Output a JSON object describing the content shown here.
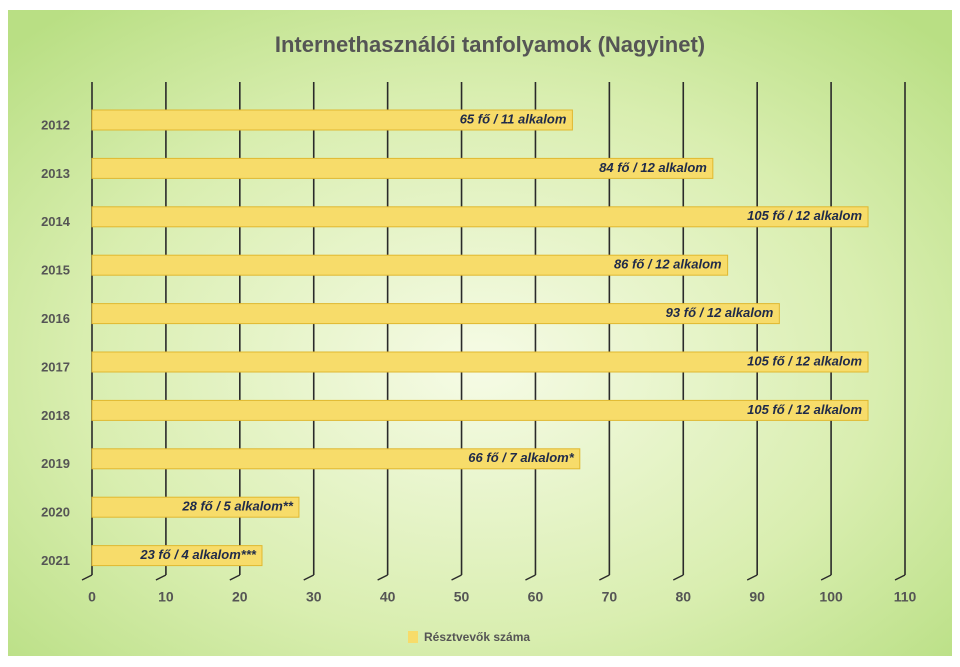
{
  "chart_data": {
    "type": "bar",
    "orientation": "horizontal",
    "title": "Internethasználói tanfolyamok (Nagyinet)",
    "categories": [
      "2012",
      "2013",
      "2014",
      "2015",
      "2016",
      "2017",
      "2018",
      "2019",
      "2020",
      "2021"
    ],
    "series": [
      {
        "name": "Résztvevők száma",
        "color": "#f7dc6a",
        "values": [
          65,
          84,
          105,
          86,
          93,
          105,
          105,
          66,
          28,
          23
        ],
        "value_labels": [
          "65 fő / 11 alkalom",
          "84 fő / 12 alkalom",
          "105 fő / 12 alkalom",
          "86 fő / 12 alkalom",
          "93 fő / 12 alkalom",
          "105 fő / 12 alkalom",
          "105 fő / 12 alkalom",
          "66 fő / 7 alkalom*",
          "28 fő / 5 alkalom**",
          "23 fő / 4 alkalom***"
        ]
      }
    ],
    "xlim": [
      0,
      110
    ],
    "xticks": [
      0,
      10,
      20,
      30,
      40,
      50,
      60,
      70,
      80,
      90,
      100,
      110
    ],
    "grid": true
  }
}
